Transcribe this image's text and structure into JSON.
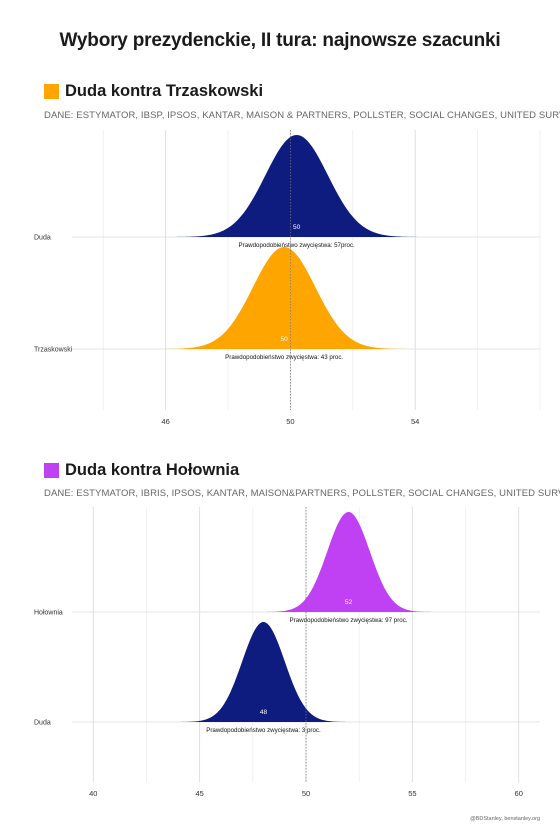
{
  "title": "Wybory prezydenckie, II tura: najnowsze szacunki",
  "credit": "@BDStanley, benstanley.org",
  "chart_data": [
    {
      "type": "area",
      "title": "Duda kontra Trzaskowski",
      "title_color": "#FFA500",
      "subtitle": "DANE: ESTYMATOR, IBSP, IPSOS, KANTAR, MAISON & PARTNERS, POLLSTER, SOCIAL CHANGES, UNITED SURVEY",
      "xlim": [
        43,
        58
      ],
      "xticks": [
        46,
        50,
        54
      ],
      "xtick_labels": [
        "46",
        "50",
        "54"
      ],
      "grid": true,
      "reference_line": 50,
      "series": [
        {
          "name": "Duda",
          "color": "#0D1C7E",
          "mean": 50.2,
          "sd": 1.0,
          "median_label": "50",
          "win_label": "Prawdopodobieństwo zwycięstwa: 57proc."
        },
        {
          "name": "Trzaskowski",
          "color": "#FFA500",
          "mean": 49.8,
          "sd": 1.0,
          "median_label": "50",
          "win_label": "Prawdopodobieństwo zwycięstwa: 43 proc."
        }
      ]
    },
    {
      "type": "area",
      "title": "Duda kontra Hołownia",
      "title_color": "#C040F4",
      "subtitle": "DANE: ESTYMATOR, IBRIS, IPSOS, KANTAR, MAISON&PARTNERS, POLLSTER, SOCIAL CHANGES, UNITED SURVEY",
      "xlim": [
        39,
        61
      ],
      "xticks": [
        40,
        45,
        50,
        55,
        60
      ],
      "xtick_labels": [
        "40",
        "45",
        "50",
        "55",
        "60"
      ],
      "grid": true,
      "reference_line": 50,
      "series": [
        {
          "name": "Hołownia",
          "color": "#C040F4",
          "mean": 52.0,
          "sd": 1.0,
          "median_label": "52",
          "win_label": "Prawdopodobieństwo zwycięstwa: 97 proc."
        },
        {
          "name": "Duda",
          "color": "#0D1C7E",
          "mean": 48.0,
          "sd": 1.0,
          "median_label": "48",
          "win_label": "Prawdopodobieństwo zwycięstwa: 3 proc."
        }
      ]
    }
  ]
}
